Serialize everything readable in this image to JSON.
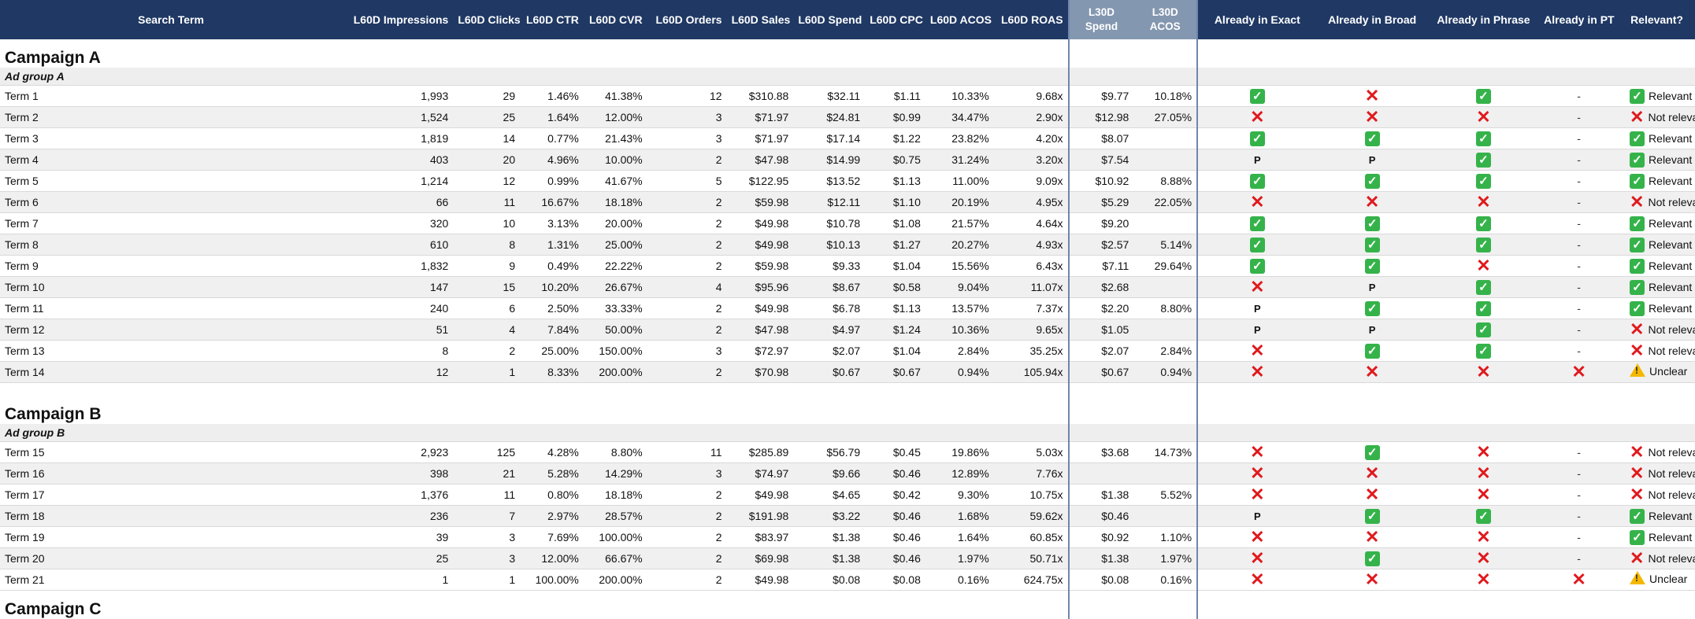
{
  "headers": {
    "term": "Search Term",
    "impressions": "L60D Impressions",
    "clicks": "L60D Clicks",
    "ctr": "L60D CTR",
    "cvr": "L60D CVR",
    "orders": "L60D Orders",
    "sales": "L60D Sales",
    "spend": "L60D Spend",
    "cpc": "L60D CPC",
    "acos": "L60D ACOS",
    "roas": "L60D ROAS",
    "l30_spend_1": "L30D",
    "l30_spend_2": "Spend",
    "l30_acos_1": "L30D",
    "l30_acos_2": "ACOS",
    "exact": "Already in Exact",
    "broad": "Already in Broad",
    "phrase": "Already in Phrase",
    "pt": "Already in PT",
    "relevant": "Relevant?"
  },
  "colors": {
    "header_bg": "#1f3864",
    "l30_header_bg": "#8497b0",
    "check": "#35b34a",
    "cross": "#e0191d",
    "warn": "#f5b800"
  },
  "icons": {
    "yes": "check-icon",
    "no": "cross-icon",
    "partial": "P",
    "none": "-",
    "unclear": "warning-icon"
  },
  "campaigns": [
    {
      "name": "Campaign A",
      "adgroup": "Ad group A",
      "rows": [
        {
          "term": "Term 1",
          "impressions": "1,993",
          "clicks": "29",
          "ctr": "1.46%",
          "cvr": "41.38%",
          "orders": "12",
          "sales": "$310.88",
          "spend": "$32.11",
          "cpc": "$1.11",
          "acos": "10.33%",
          "roas": "9.68x",
          "l30_spend": "$9.77",
          "l30_acos": "10.18%",
          "exact": "yes",
          "broad": "no",
          "phrase": "yes",
          "pt": "-",
          "relevant": "Relevant",
          "rel_icon": "yes"
        },
        {
          "term": "Term 2",
          "impressions": "1,524",
          "clicks": "25",
          "ctr": "1.64%",
          "cvr": "12.00%",
          "orders": "3",
          "sales": "$71.97",
          "spend": "$24.81",
          "cpc": "$0.99",
          "acos": "34.47%",
          "roas": "2.90x",
          "l30_spend": "$12.98",
          "l30_acos": "27.05%",
          "exact": "no",
          "broad": "no",
          "phrase": "no",
          "pt": "-",
          "relevant": "Not relevant",
          "rel_icon": "no"
        },
        {
          "term": "Term 3",
          "impressions": "1,819",
          "clicks": "14",
          "ctr": "0.77%",
          "cvr": "21.43%",
          "orders": "3",
          "sales": "$71.97",
          "spend": "$17.14",
          "cpc": "$1.22",
          "acos": "23.82%",
          "roas": "4.20x",
          "l30_spend": "$8.07",
          "l30_acos": "",
          "exact": "yes",
          "broad": "yes",
          "phrase": "yes",
          "pt": "-",
          "relevant": "Relevant",
          "rel_icon": "yes"
        },
        {
          "term": "Term 4",
          "impressions": "403",
          "clicks": "20",
          "ctr": "4.96%",
          "cvr": "10.00%",
          "orders": "2",
          "sales": "$47.98",
          "spend": "$14.99",
          "cpc": "$0.75",
          "acos": "31.24%",
          "roas": "3.20x",
          "l30_spend": "$7.54",
          "l30_acos": "",
          "exact": "P",
          "broad": "P",
          "phrase": "yes",
          "pt": "-",
          "relevant": "Relevant",
          "rel_icon": "yes"
        },
        {
          "term": "Term 5",
          "impressions": "1,214",
          "clicks": "12",
          "ctr": "0.99%",
          "cvr": "41.67%",
          "orders": "5",
          "sales": "$122.95",
          "spend": "$13.52",
          "cpc": "$1.13",
          "acos": "11.00%",
          "roas": "9.09x",
          "l30_spend": "$10.92",
          "l30_acos": "8.88%",
          "exact": "yes",
          "broad": "yes",
          "phrase": "yes",
          "pt": "-",
          "relevant": "Relevant",
          "rel_icon": "yes"
        },
        {
          "term": "Term 6",
          "impressions": "66",
          "clicks": "11",
          "ctr": "16.67%",
          "cvr": "18.18%",
          "orders": "2",
          "sales": "$59.98",
          "spend": "$12.11",
          "cpc": "$1.10",
          "acos": "20.19%",
          "roas": "4.95x",
          "l30_spend": "$5.29",
          "l30_acos": "22.05%",
          "exact": "no",
          "broad": "no",
          "phrase": "no",
          "pt": "-",
          "relevant": "Not relevant",
          "rel_icon": "no"
        },
        {
          "term": "Term 7",
          "impressions": "320",
          "clicks": "10",
          "ctr": "3.13%",
          "cvr": "20.00%",
          "orders": "2",
          "sales": "$49.98",
          "spend": "$10.78",
          "cpc": "$1.08",
          "acos": "21.57%",
          "roas": "4.64x",
          "l30_spend": "$9.20",
          "l30_acos": "",
          "exact": "yes",
          "broad": "yes",
          "phrase": "yes",
          "pt": "-",
          "relevant": "Relevant",
          "rel_icon": "yes"
        },
        {
          "term": "Term 8",
          "impressions": "610",
          "clicks": "8",
          "ctr": "1.31%",
          "cvr": "25.00%",
          "orders": "2",
          "sales": "$49.98",
          "spend": "$10.13",
          "cpc": "$1.27",
          "acos": "20.27%",
          "roas": "4.93x",
          "l30_spend": "$2.57",
          "l30_acos": "5.14%",
          "exact": "yes",
          "broad": "yes",
          "phrase": "yes",
          "pt": "-",
          "relevant": "Relevant",
          "rel_icon": "yes"
        },
        {
          "term": "Term 9",
          "impressions": "1,832",
          "clicks": "9",
          "ctr": "0.49%",
          "cvr": "22.22%",
          "orders": "2",
          "sales": "$59.98",
          "spend": "$9.33",
          "cpc": "$1.04",
          "acos": "15.56%",
          "roas": "6.43x",
          "l30_spend": "$7.11",
          "l30_acos": "29.64%",
          "exact": "yes",
          "broad": "yes",
          "phrase": "no",
          "pt": "-",
          "relevant": "Relevant",
          "rel_icon": "yes"
        },
        {
          "term": "Term 10",
          "impressions": "147",
          "clicks": "15",
          "ctr": "10.20%",
          "cvr": "26.67%",
          "orders": "4",
          "sales": "$95.96",
          "spend": "$8.67",
          "cpc": "$0.58",
          "acos": "9.04%",
          "roas": "11.07x",
          "l30_spend": "$2.68",
          "l30_acos": "",
          "exact": "no",
          "broad": "P",
          "phrase": "yes",
          "pt": "-",
          "relevant": "Relevant",
          "rel_icon": "yes"
        },
        {
          "term": "Term 11",
          "impressions": "240",
          "clicks": "6",
          "ctr": "2.50%",
          "cvr": "33.33%",
          "orders": "2",
          "sales": "$49.98",
          "spend": "$6.78",
          "cpc": "$1.13",
          "acos": "13.57%",
          "roas": "7.37x",
          "l30_spend": "$2.20",
          "l30_acos": "8.80%",
          "exact": "P",
          "broad": "yes",
          "phrase": "yes",
          "pt": "-",
          "relevant": "Relevant",
          "rel_icon": "yes"
        },
        {
          "term": "Term 12",
          "impressions": "51",
          "clicks": "4",
          "ctr": "7.84%",
          "cvr": "50.00%",
          "orders": "2",
          "sales": "$47.98",
          "spend": "$4.97",
          "cpc": "$1.24",
          "acos": "10.36%",
          "roas": "9.65x",
          "l30_spend": "$1.05",
          "l30_acos": "",
          "exact": "P",
          "broad": "P",
          "phrase": "yes",
          "pt": "-",
          "relevant": "Not relevant",
          "rel_icon": "no"
        },
        {
          "term": "Term 13",
          "impressions": "8",
          "clicks": "2",
          "ctr": "25.00%",
          "cvr": "150.00%",
          "orders": "3",
          "sales": "$72.97",
          "spend": "$2.07",
          "cpc": "$1.04",
          "acos": "2.84%",
          "roas": "35.25x",
          "l30_spend": "$2.07",
          "l30_acos": "2.84%",
          "exact": "no",
          "broad": "yes",
          "phrase": "yes",
          "pt": "-",
          "relevant": "Not relevant",
          "rel_icon": "no"
        },
        {
          "term": "Term 14",
          "impressions": "12",
          "clicks": "1",
          "ctr": "8.33%",
          "cvr": "200.00%",
          "orders": "2",
          "sales": "$70.98",
          "spend": "$0.67",
          "cpc": "$0.67",
          "acos": "0.94%",
          "roas": "105.94x",
          "l30_spend": "$0.67",
          "l30_acos": "0.94%",
          "exact": "no",
          "broad": "no",
          "phrase": "no",
          "pt": "no",
          "relevant": "Unclear",
          "rel_icon": "warn"
        }
      ]
    },
    {
      "name": "Campaign B",
      "adgroup": "Ad group B",
      "rows": [
        {
          "term": "Term 15",
          "impressions": "2,923",
          "clicks": "125",
          "ctr": "4.28%",
          "cvr": "8.80%",
          "orders": "11",
          "sales": "$285.89",
          "spend": "$56.79",
          "cpc": "$0.45",
          "acos": "19.86%",
          "roas": "5.03x",
          "l30_spend": "$3.68",
          "l30_acos": "14.73%",
          "exact": "no",
          "broad": "yes",
          "phrase": "no",
          "pt": "-",
          "relevant": "Not relevant",
          "rel_icon": "no"
        },
        {
          "term": "Term 16",
          "impressions": "398",
          "clicks": "21",
          "ctr": "5.28%",
          "cvr": "14.29%",
          "orders": "3",
          "sales": "$74.97",
          "spend": "$9.66",
          "cpc": "$0.46",
          "acos": "12.89%",
          "roas": "7.76x",
          "l30_spend": "",
          "l30_acos": "",
          "exact": "no",
          "broad": "no",
          "phrase": "no",
          "pt": "-",
          "relevant": "Not relevant",
          "rel_icon": "no"
        },
        {
          "term": "Term 17",
          "impressions": "1,376",
          "clicks": "11",
          "ctr": "0.80%",
          "cvr": "18.18%",
          "orders": "2",
          "sales": "$49.98",
          "spend": "$4.65",
          "cpc": "$0.42",
          "acos": "9.30%",
          "roas": "10.75x",
          "l30_spend": "$1.38",
          "l30_acos": "5.52%",
          "exact": "no",
          "broad": "no",
          "phrase": "no",
          "pt": "-",
          "relevant": "Not relevant",
          "rel_icon": "no"
        },
        {
          "term": "Term 18",
          "impressions": "236",
          "clicks": "7",
          "ctr": "2.97%",
          "cvr": "28.57%",
          "orders": "2",
          "sales": "$191.98",
          "spend": "$3.22",
          "cpc": "$0.46",
          "acos": "1.68%",
          "roas": "59.62x",
          "l30_spend": "$0.46",
          "l30_acos": "",
          "exact": "P",
          "broad": "yes",
          "phrase": "yes",
          "pt": "-",
          "relevant": "Relevant",
          "rel_icon": "yes"
        },
        {
          "term": "Term 19",
          "impressions": "39",
          "clicks": "3",
          "ctr": "7.69%",
          "cvr": "100.00%",
          "orders": "2",
          "sales": "$83.97",
          "spend": "$1.38",
          "cpc": "$0.46",
          "acos": "1.64%",
          "roas": "60.85x",
          "l30_spend": "$0.92",
          "l30_acos": "1.10%",
          "exact": "no",
          "broad": "no",
          "phrase": "no",
          "pt": "-",
          "relevant": "Relevant",
          "rel_icon": "yes"
        },
        {
          "term": "Term 20",
          "impressions": "25",
          "clicks": "3",
          "ctr": "12.00%",
          "cvr": "66.67%",
          "orders": "2",
          "sales": "$69.98",
          "spend": "$1.38",
          "cpc": "$0.46",
          "acos": "1.97%",
          "roas": "50.71x",
          "l30_spend": "$1.38",
          "l30_acos": "1.97%",
          "exact": "no",
          "broad": "yes",
          "phrase": "no",
          "pt": "-",
          "relevant": "Not relevant",
          "rel_icon": "no"
        },
        {
          "term": "Term 21",
          "impressions": "1",
          "clicks": "1",
          "ctr": "100.00%",
          "cvr": "200.00%",
          "orders": "2",
          "sales": "$49.98",
          "spend": "$0.08",
          "cpc": "$0.08",
          "acos": "0.16%",
          "roas": "624.75x",
          "l30_spend": "$0.08",
          "l30_acos": "0.16%",
          "exact": "no",
          "broad": "no",
          "phrase": "no",
          "pt": "no",
          "relevant": "Unclear",
          "rel_icon": "warn"
        }
      ]
    },
    {
      "name": "Campaign C",
      "adgroup": "",
      "rows": []
    }
  ]
}
